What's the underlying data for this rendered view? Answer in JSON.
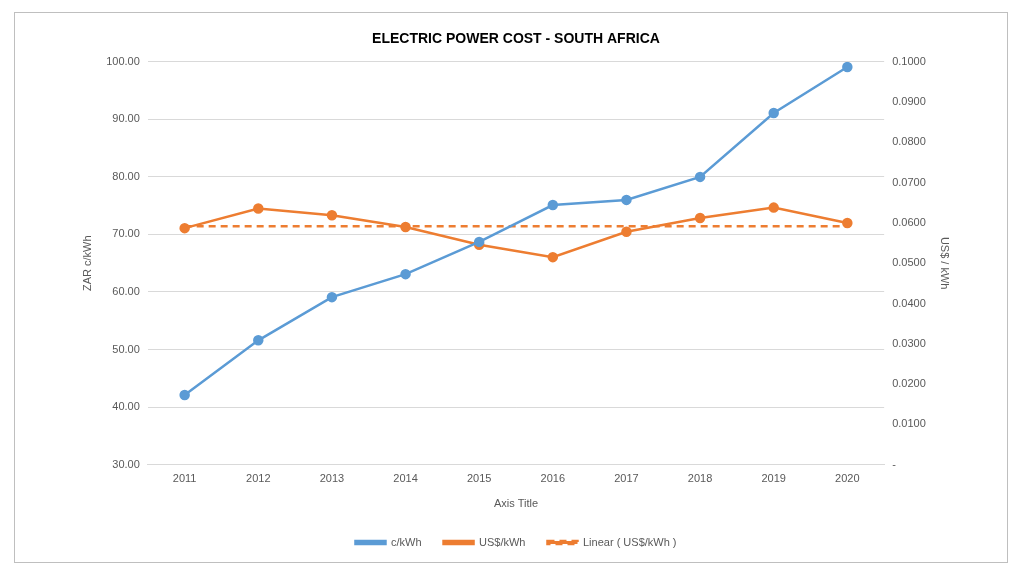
{
  "chart_data": {
    "type": "line",
    "title": "ELECTRIC POWER COST - SOUTH AFRICA",
    "x_label": "Axis Title",
    "y_label": "ZAR c/kWh",
    "y2_label": "US$ / kWh",
    "categories": [
      "2011",
      "2012",
      "2013",
      "2014",
      "2015",
      "2016",
      "2017",
      "2018",
      "2019",
      "2020"
    ],
    "series": [
      {
        "name": "c/kWh",
        "color": "#5B9BD5",
        "axis": "y",
        "marker": "circle",
        "line_style": "solid",
        "values": [
          42.1,
          51.6,
          59.1,
          63.1,
          68.7,
          75.1,
          76.0,
          80.0,
          91.1,
          99.1
        ]
      },
      {
        "name": "US$/kWh",
        "color": "#ED7D31",
        "axis": "y2",
        "marker": "circle",
        "line_style": "solid",
        "values": [
          0.0587,
          0.0636,
          0.0619,
          0.059,
          0.0546,
          0.0515,
          0.0578,
          0.0612,
          0.0638,
          0.06
        ]
      },
      {
        "name": "Linear ( US$/kWh )",
        "color": "#ED7D31",
        "axis": "y2",
        "marker": "none",
        "line_style": "dashed",
        "values": [
          0.0592,
          0.0592,
          0.0592,
          0.0592,
          0.0592,
          0.0592,
          0.0592,
          0.0592,
          0.0592,
          0.0592
        ]
      }
    ],
    "ylim": [
      30,
      100
    ],
    "yticks": [
      {
        "value": 30,
        "label": "30.00"
      },
      {
        "value": 40,
        "label": "40.00"
      },
      {
        "value": 50,
        "label": "50.00"
      },
      {
        "value": 60,
        "label": "60.00"
      },
      {
        "value": 70,
        "label": "70.00"
      },
      {
        "value": 80,
        "label": "80.00"
      },
      {
        "value": 90,
        "label": "90.00"
      },
      {
        "value": 100,
        "label": "100.00"
      }
    ],
    "y2lim": [
      0,
      0.1
    ],
    "y2ticks": [
      {
        "value": 0,
        "label": "-"
      },
      {
        "value": 0.01,
        "label": "0.0100"
      },
      {
        "value": 0.02,
        "label": "0.0200"
      },
      {
        "value": 0.03,
        "label": "0.0300"
      },
      {
        "value": 0.04,
        "label": "0.0400"
      },
      {
        "value": 0.05,
        "label": "0.0500"
      },
      {
        "value": 0.06,
        "label": "0.0600"
      },
      {
        "value": 0.07,
        "label": "0.0700"
      },
      {
        "value": 0.08,
        "label": "0.0800"
      },
      {
        "value": 0.09,
        "label": "0.0900"
      },
      {
        "value": 0.1,
        "label": "0.1000"
      }
    ],
    "grid": true,
    "legend": "bottom"
  }
}
